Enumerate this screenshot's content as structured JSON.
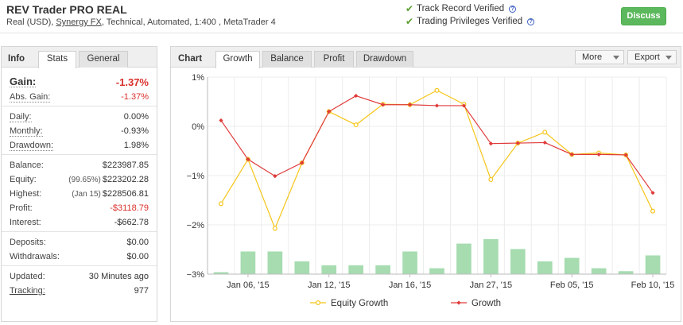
{
  "header": {
    "system_title": "REV Trader PRO REAL",
    "sub_prefix": "Real (USD), ",
    "broker": "Synergy FX",
    "sub_suffix": ", Technical, Automated, 1:400 , MetaTrader 4",
    "verify_1": "Track Record Verified",
    "verify_2": "Trading Privileges Verified",
    "help_glyph": "?",
    "discuss_label": "Discuss",
    "icons": [
      "check-icon",
      "help-icon"
    ]
  },
  "info": {
    "tabs": [
      "Info",
      "Stats",
      "General"
    ],
    "rows": [
      {
        "key": "Gain:",
        "value": "-1.37%",
        "red": true
      },
      {
        "key": "Abs. Gain:",
        "value": "-1.37%",
        "red": true
      },
      {
        "key": "Daily:",
        "value": "0.00%"
      },
      {
        "key": "Monthly:",
        "value": "-0.93%"
      },
      {
        "key": "Drawdown:",
        "value": "1.98%"
      },
      {
        "key": "Balance:",
        "value": "$223987.85"
      },
      {
        "key": "Equity:",
        "note": "(99.65%)",
        "value": "$223202.28"
      },
      {
        "key": "Highest:",
        "note": "(Jan 15)",
        "value": "$228506.81"
      },
      {
        "key": "Profit:",
        "value": "-$3118.79",
        "red": true
      },
      {
        "key": "Interest:",
        "value": "-$662.78"
      },
      {
        "key": "Deposits:",
        "value": "$0.00"
      },
      {
        "key": "Withdrawals:",
        "value": "$0.00"
      },
      {
        "key": "Updated:",
        "value": "30 Minutes ago"
      },
      {
        "key": "Tracking:",
        "value": "977"
      }
    ]
  },
  "chart_panel": {
    "label": "Chart",
    "tabs": [
      "Growth",
      "Balance",
      "Profit",
      "Drawdown"
    ],
    "more_label": "More",
    "export_label": "Export"
  },
  "chart_data": {
    "type": "line",
    "y_ticks": [
      "1%",
      "0%",
      "−1%",
      "−2%",
      "−3%"
    ],
    "y_values": [
      1,
      0,
      -1,
      -2,
      -3
    ],
    "ylim": [
      -3,
      1
    ],
    "x_labels": [
      "Jan 06, '15",
      "Jan 12, '15",
      "Jan 16, '15",
      "Jan 27, '15",
      "Feb 05, '15",
      "Feb 10, '15"
    ],
    "x_label_index": [
      1,
      4,
      7,
      10,
      13,
      16
    ],
    "series": [
      {
        "name": "Equity Growth",
        "color": "#f5c518",
        "values": [
          -1.57,
          -0.67,
          -2.07,
          -0.74,
          0.3,
          0.03,
          0.45,
          0.44,
          0.73,
          0.45,
          -1.08,
          -0.34,
          -0.12,
          -0.57,
          -0.54,
          -0.58,
          -1.72
        ]
      },
      {
        "name": "Growth",
        "color": "#e03a3a",
        "values": [
          0.12,
          -0.67,
          -1.01,
          -0.74,
          0.3,
          0.62,
          0.44,
          0.44,
          0.42,
          0.42,
          -0.35,
          -0.34,
          -0.33,
          -0.57,
          -0.57,
          -0.58,
          -1.35
        ]
      }
    ],
    "bars": {
      "color": "#a6dcb0",
      "values": [
        -2.96,
        -2.54,
        -2.54,
        -2.74,
        -2.82,
        -2.82,
        -2.82,
        -2.54,
        -2.88,
        -2.38,
        -2.29,
        -2.49,
        -2.74,
        -2.67,
        -2.88,
        -2.94,
        -2.62
      ]
    },
    "grid": true,
    "legend_position": "bottom"
  }
}
